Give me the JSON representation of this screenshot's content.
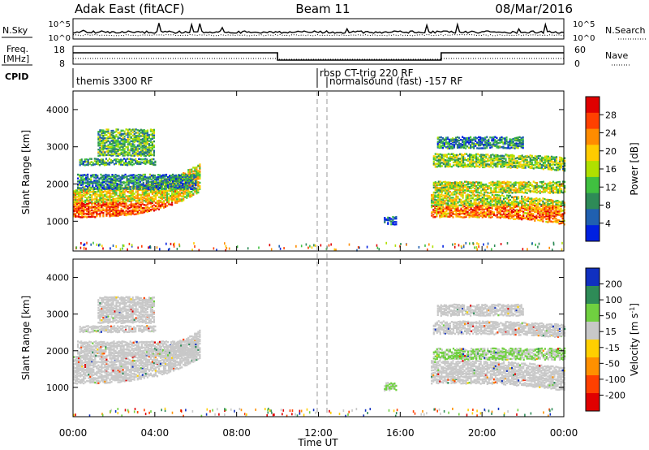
{
  "header": {
    "title": "Adak East (fitACF)",
    "beam": "Beam 11",
    "date": "08/Mar/2016"
  },
  "top_panels": {
    "nsky_label": "N.Sky",
    "nsearch_label": "N.Search",
    "nsky_ticks": [
      "10^5",
      "10^0"
    ],
    "nsearch_ticks": [
      "10^5",
      "10^0"
    ],
    "freq_label": "Freq.",
    "freq_unit": "[MHz]",
    "freq_ticks": [
      "18",
      "8"
    ],
    "nave_label": "Nave",
    "nave_ticks": [
      "60",
      "0"
    ],
    "cpid_label": "CPID",
    "cpid_segments": [
      {
        "label": "themis 3300 RF",
        "start_h": 0
      },
      {
        "label": "rbsp CT-trig 220 RF",
        "start_h": 12
      },
      {
        "label": "normalsound (fast) -157 RF",
        "start_h": 12.5
      }
    ]
  },
  "power_colorbar": {
    "label": "Power [dB]",
    "ticks": [
      "28",
      "24",
      "20",
      "16",
      "12",
      "8",
      "4"
    ],
    "colors": [
      "#e00000",
      "#ff4000",
      "#ff8c00",
      "#ffcc00",
      "#b0e000",
      "#40c040",
      "#2e8b57",
      "#2060b0",
      "#0020e0"
    ]
  },
  "velocity_colorbar": {
    "label": "Velocity [m s",
    "label_sup": "-1",
    "label_end": "]",
    "ticks": [
      "200",
      "100",
      "50",
      "15",
      "-15",
      "-50",
      "-100",
      "-200"
    ],
    "colors": [
      "#1030c0",
      "#2e8b57",
      "#70d040",
      "#c8c8c8",
      "#ffd000",
      "#ff9000",
      "#ff4000",
      "#e00000"
    ]
  },
  "chart_data": [
    {
      "type": "heatmap",
      "name": "power",
      "ylabel": "Slant Range [km]",
      "y_ticks": [
        "1000",
        "2000",
        "3000",
        "4000"
      ],
      "ylim": [
        200,
        4500
      ],
      "xlim": [
        0,
        24
      ],
      "bands": [
        {
          "t0": 0,
          "t1": 6.2,
          "r0": 1150,
          "r1": 1900,
          "rise": 700,
          "level": 24
        },
        {
          "t0": 0.2,
          "t1": 6.0,
          "r0": 1900,
          "r1": 2300,
          "rise": 0,
          "level": 6
        },
        {
          "t0": 0.3,
          "t1": 4.0,
          "r0": 2550,
          "r1": 2700,
          "rise": 0,
          "level": 8
        },
        {
          "t0": 1.2,
          "t1": 4.0,
          "r0": 2800,
          "r1": 3500,
          "rise": 0,
          "level": 10
        },
        {
          "t0": 15.2,
          "t1": 15.8,
          "r0": 950,
          "r1": 1150,
          "rise": 0,
          "level": 3
        },
        {
          "t0": 17.5,
          "t1": 24,
          "r0": 1150,
          "r1": 1750,
          "rise": -200,
          "level": 22
        },
        {
          "t0": 17.6,
          "t1": 24,
          "r0": 1800,
          "r1": 2100,
          "rise": 0,
          "level": 14
        },
        {
          "t0": 17.6,
          "t1": 24,
          "r0": 2500,
          "r1": 2850,
          "rise": -100,
          "level": 12
        },
        {
          "t0": 17.8,
          "t1": 22,
          "r0": 3000,
          "r1": 3300,
          "rise": 0,
          "level": 6
        }
      ]
    },
    {
      "type": "heatmap",
      "name": "velocity",
      "ylabel": "Slant Range [km]",
      "y_ticks": [
        "1000",
        "2000",
        "3000",
        "4000"
      ],
      "ylim": [
        200,
        4500
      ],
      "xlim": [
        0,
        24
      ],
      "x_ticks": [
        "00:00",
        "04:00",
        "08:00",
        "12:00",
        "16:00",
        "20:00",
        "00:00"
      ],
      "xlabel": "Time UT",
      "bands": [
        {
          "t0": 0,
          "t1": 6.2,
          "r0": 1150,
          "r1": 1900,
          "rise": 700,
          "level": 0
        },
        {
          "t0": 0.2,
          "t1": 6.0,
          "r0": 1900,
          "r1": 2300,
          "rise": 0,
          "level": 0
        },
        {
          "t0": 0.3,
          "t1": 4.0,
          "r0": 2550,
          "r1": 2700,
          "rise": 0,
          "level": 0
        },
        {
          "t0": 1.2,
          "t1": 4.0,
          "r0": 2800,
          "r1": 3500,
          "rise": 0,
          "level": 0
        },
        {
          "t0": 15.2,
          "t1": 15.8,
          "r0": 950,
          "r1": 1150,
          "rise": 0,
          "level": 60
        },
        {
          "t0": 17.5,
          "t1": 24,
          "r0": 1150,
          "r1": 1750,
          "rise": -200,
          "level": 0
        },
        {
          "t0": 17.6,
          "t1": 24,
          "r0": 1800,
          "r1": 2100,
          "rise": 0,
          "level": 40
        },
        {
          "t0": 17.6,
          "t1": 24,
          "r0": 2500,
          "r1": 2850,
          "rise": -100,
          "level": 0
        },
        {
          "t0": 17.8,
          "t1": 22,
          "r0": 3000,
          "r1": 3300,
          "rise": 0,
          "level": 0
        }
      ]
    }
  ]
}
